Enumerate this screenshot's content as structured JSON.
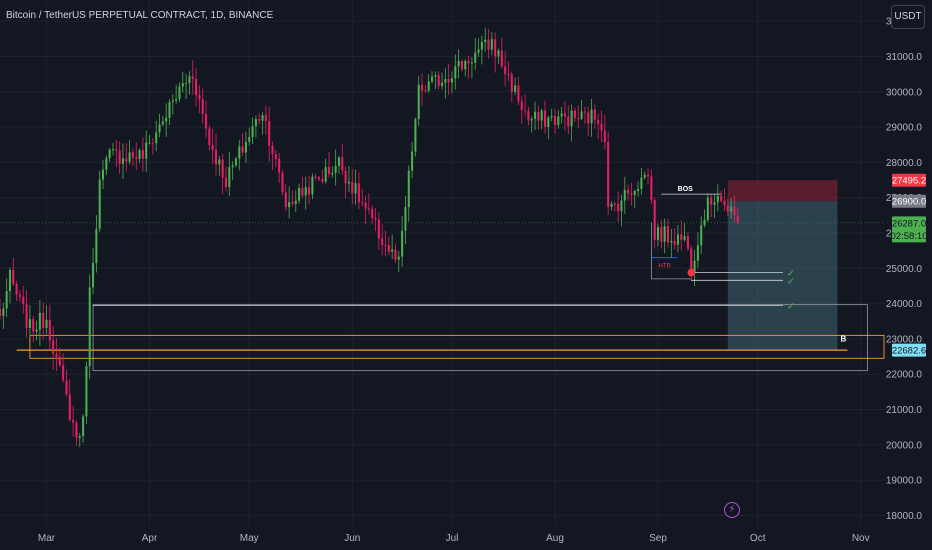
{
  "header": {
    "title": "Bitcoin / TetherUS PERPETUAL CONTRACT, 1D, BINANCE",
    "currency_label": "USDT",
    "alert_icon": "lightning-bolt-icon"
  },
  "colors": {
    "background": "#131722",
    "up": "#26a69a",
    "up_candle": "#4caf50",
    "down": "#e91e63",
    "box_outline": "#9598a1",
    "highlight_orange": "#f0a030",
    "target_zone": "#5d8fa0",
    "stop_zone": "#b2263c"
  },
  "chart_data": {
    "type": "candlestick",
    "title": "Bitcoin / TetherUS PERPETUAL CONTRACT, 1D, BINANCE",
    "currency": "USDT",
    "ylim": [
      17700,
      32600
    ],
    "y_ticks": [
      18000,
      19000,
      20000,
      21000,
      22000,
      23000,
      24000,
      25000,
      26000,
      27000,
      28000,
      29000,
      30000,
      31000,
      32000
    ],
    "x_ticks": [
      "Mar",
      "Apr",
      "May",
      "Jun",
      "Jul",
      "Aug",
      "Sep",
      "Oct",
      "Nov"
    ],
    "x_range": [
      "2023-02-15",
      "2023-11-08"
    ],
    "anchors": [
      {
        "d": "2023-02-15",
        "p": 23600
      },
      {
        "d": "2023-02-18",
        "p": 24700
      },
      {
        "d": "2023-02-24",
        "p": 23300
      },
      {
        "d": "2023-03-01",
        "p": 23600
      },
      {
        "d": "2023-03-04",
        "p": 22400
      },
      {
        "d": "2023-03-10",
        "p": 20200
      },
      {
        "d": "2023-03-12",
        "p": 20600
      },
      {
        "d": "2023-03-14",
        "p": 24300
      },
      {
        "d": "2023-03-17",
        "p": 27400
      },
      {
        "d": "2023-03-20",
        "p": 28200
      },
      {
        "d": "2023-03-30",
        "p": 28200
      },
      {
        "d": "2023-04-11",
        "p": 30200
      },
      {
        "d": "2023-04-14",
        "p": 30500
      },
      {
        "d": "2023-04-19",
        "p": 28600
      },
      {
        "d": "2023-04-24",
        "p": 27500
      },
      {
        "d": "2023-05-05",
        "p": 29500
      },
      {
        "d": "2023-05-12",
        "p": 26800
      },
      {
        "d": "2023-05-28",
        "p": 28000
      },
      {
        "d": "2023-06-10",
        "p": 25800
      },
      {
        "d": "2023-06-15",
        "p": 25100
      },
      {
        "d": "2023-06-21",
        "p": 30000
      },
      {
        "d": "2023-06-30",
        "p": 30500
      },
      {
        "d": "2023-07-13",
        "p": 31400
      },
      {
        "d": "2023-07-24",
        "p": 29200
      },
      {
        "d": "2023-08-14",
        "p": 29300
      },
      {
        "d": "2023-08-16",
        "p": 28800
      },
      {
        "d": "2023-08-17",
        "p": 26600
      },
      {
        "d": "2023-08-29",
        "p": 27700
      },
      {
        "d": "2023-08-31",
        "p": 26000
      },
      {
        "d": "2023-09-10",
        "p": 25800
      },
      {
        "d": "2023-09-11",
        "p": 25100
      },
      {
        "d": "2023-09-15",
        "p": 26600
      },
      {
        "d": "2023-09-19",
        "p": 27200
      },
      {
        "d": "2023-09-22",
        "p": 26600
      },
      {
        "d": "2023-09-25",
        "p": 26287
      }
    ],
    "last_price": 26287.0,
    "countdown": "02:58:10",
    "price_labels": [
      {
        "value": 27495.2,
        "text": "27495.2",
        "kind": "stop"
      },
      {
        "value": 26900.0,
        "text": "26900.0",
        "kind": "entry"
      },
      {
        "value": 26287.0,
        "text": "26287.0",
        "kind": "last"
      },
      {
        "value": 22682.6,
        "text": "22682.6",
        "kind": "target"
      }
    ],
    "position": {
      "type": "short",
      "start": "2023-09-22",
      "end": "2023-10-25",
      "stop": 27495.2,
      "entry": 26900.0,
      "target": 22682.6
    },
    "annotations": {
      "bos": {
        "text": "BOS",
        "level": 27100,
        "from": "2023-09-02",
        "to": "2023-09-20"
      },
      "htr": {
        "text": "HTR",
        "level": 25300,
        "from": "2023-08-30",
        "to": "2023-09-07"
      },
      "marker": {
        "date": "2023-09-11",
        "price": 24880
      },
      "bracket": {
        "level": 24700,
        "from": "2023-08-30",
        "to": "2023-08-31",
        "top": 26300
      },
      "checkmarks": [
        {
          "symbol": "✓",
          "level": 24880,
          "from": "2023-09-11",
          "to": "2023-10-11"
        },
        {
          "symbol": "✓",
          "level": 24660,
          "from": "2023-09-11",
          "to": "2023-10-11"
        },
        {
          "symbol": "✓",
          "level": 23950,
          "from": "2023-03-15",
          "to": "2023-10-11"
        }
      ],
      "zone_label": "B",
      "gray_box": {
        "from": "2023-03-15",
        "to": "2023-11-03",
        "top": 23970,
        "bottom": 22100
      },
      "orange_box": {
        "from": "2023-02-24",
        "to": "2023-11-08",
        "top": 23100,
        "bottom": 22450
      },
      "orange_line": {
        "from": "2023-02-20",
        "to": "2023-10-28",
        "level": 22682.6
      }
    }
  }
}
